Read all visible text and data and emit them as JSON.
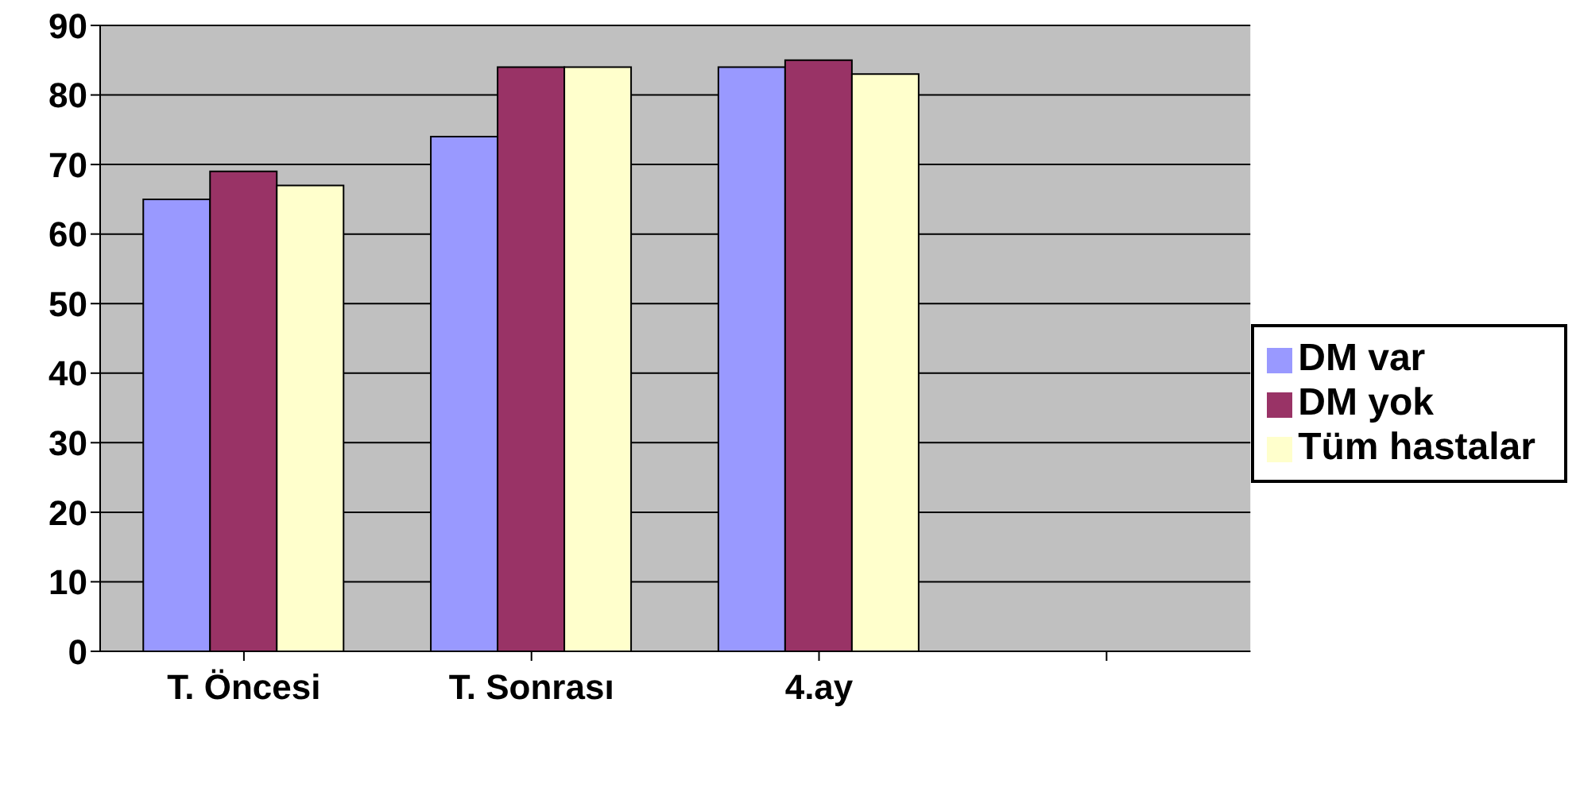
{
  "chart_data": {
    "type": "bar",
    "categories": [
      "T. Öncesi",
      "T. Sonrası",
      "4.ay",
      null
    ],
    "series": [
      {
        "name": "DM var",
        "color": "#9999ff",
        "values": [
          65,
          74,
          84,
          null
        ]
      },
      {
        "name": "DM yok",
        "color": "#993366",
        "values": [
          69,
          84,
          85,
          null
        ]
      },
      {
        "name": "Tüm hastalar",
        "color": "#ffffcc",
        "values": [
          67,
          84,
          83,
          null
        ]
      }
    ],
    "ylim": [
      0,
      90
    ],
    "yticks": [
      0,
      10,
      20,
      30,
      40,
      50,
      60,
      70,
      80,
      90
    ],
    "grid": "y",
    "legend": "right"
  }
}
